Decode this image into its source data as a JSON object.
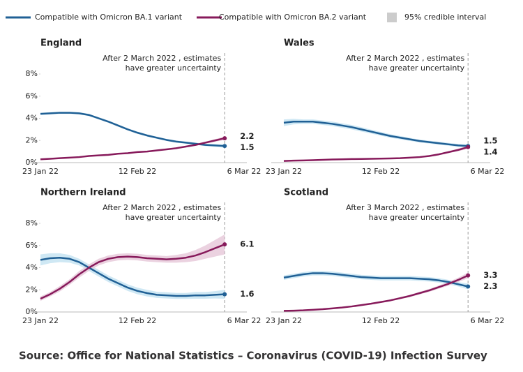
{
  "legend": [
    {
      "name": "Compatible with Omicron BA.1 variant",
      "color": "#206095"
    },
    {
      "name": "Compatible with Omicron BA.2 variant",
      "color": "#871a5b"
    },
    {
      "name": "95% credible interval",
      "color": "#cccccc"
    }
  ],
  "source": "Source: Office for National Statistics – Coronavirus (COVID-19) Infection Survey",
  "chart_data": [
    {
      "type": "line",
      "title": "England",
      "annotation": [
        "After 2 March 2022 , estimates",
        "have greater uncertainty"
      ],
      "categories": [
        "23 Jan 22",
        null,
        null,
        null,
        null,
        null,
        null,
        null,
        null,
        null,
        "12 Feb 22",
        null,
        null,
        null,
        null,
        null,
        null,
        null,
        null,
        null,
        null,
        "6 Mar 22"
      ],
      "ylim": [
        0,
        8
      ],
      "yticks": [
        {
          "value": 0,
          "label": "0%"
        },
        {
          "value": 2,
          "label": "2%"
        },
        {
          "value": 4,
          "label": "4%"
        },
        {
          "value": 6,
          "label": "6%"
        },
        {
          "value": 8,
          "label": "8%"
        }
      ],
      "series": [
        {
          "color": "#206095",
          "band_color": "#c3e2f1",
          "values": [
            4.4,
            4.45,
            4.5,
            4.5,
            4.45,
            4.3,
            4.0,
            3.7,
            3.35,
            3.0,
            2.7,
            2.45,
            2.25,
            2.05,
            1.9,
            1.8,
            1.7,
            1.6,
            1.55,
            1.5,
            null,
            null
          ],
          "lower": [
            4.3,
            4.35,
            4.4,
            4.4,
            4.35,
            4.2,
            3.9,
            3.6,
            3.25,
            2.9,
            2.6,
            2.35,
            2.15,
            1.95,
            1.8,
            1.7,
            1.6,
            1.5,
            1.42,
            1.35,
            null,
            null
          ],
          "upper": [
            4.5,
            4.55,
            4.6,
            4.6,
            4.55,
            4.4,
            4.1,
            3.8,
            3.45,
            3.1,
            2.8,
            2.55,
            2.35,
            2.15,
            2.0,
            1.9,
            1.8,
            1.7,
            1.68,
            1.65,
            null,
            null
          ]
        },
        {
          "color": "#871a5b",
          "band_color": "#e6c7d8",
          "values": [
            0.3,
            0.35,
            0.4,
            0.45,
            0.5,
            0.6,
            0.65,
            0.7,
            0.8,
            0.85,
            0.95,
            1.0,
            1.1,
            1.2,
            1.3,
            1.45,
            1.6,
            1.8,
            2.0,
            2.2,
            null,
            null
          ],
          "lower": [
            0.25,
            0.3,
            0.35,
            0.4,
            0.45,
            0.55,
            0.6,
            0.65,
            0.75,
            0.8,
            0.9,
            0.95,
            1.05,
            1.15,
            1.25,
            1.38,
            1.52,
            1.7,
            1.88,
            2.05,
            null,
            null
          ],
          "upper": [
            0.35,
            0.4,
            0.45,
            0.5,
            0.55,
            0.65,
            0.7,
            0.75,
            0.85,
            0.9,
            1.0,
            1.05,
            1.15,
            1.25,
            1.35,
            1.52,
            1.68,
            1.9,
            2.12,
            2.35,
            null,
            null
          ]
        }
      ]
    },
    {
      "type": "line",
      "title": "Wales",
      "annotation": [
        "After 2 March 2022 , estimates",
        "have greater uncertainty"
      ],
      "categories": [
        "23 Jan 22",
        null,
        null,
        null,
        null,
        null,
        null,
        null,
        null,
        null,
        "12 Feb 22",
        null,
        null,
        null,
        null,
        null,
        null,
        null,
        null,
        null,
        null,
        "6 Mar 22"
      ],
      "ylim": [
        0,
        8
      ],
      "series": [
        {
          "color": "#206095",
          "band_color": "#c3e2f1",
          "values": [
            3.6,
            3.7,
            3.7,
            3.7,
            3.6,
            3.5,
            3.35,
            3.2,
            3.0,
            2.8,
            2.6,
            2.4,
            2.25,
            2.1,
            1.95,
            1.85,
            1.75,
            1.65,
            1.55,
            1.5,
            null,
            null
          ],
          "lower": [
            3.3,
            3.45,
            3.5,
            3.5,
            3.4,
            3.3,
            3.15,
            3.0,
            2.8,
            2.62,
            2.43,
            2.24,
            2.1,
            1.96,
            1.82,
            1.72,
            1.62,
            1.52,
            1.42,
            1.35,
            null,
            null
          ],
          "upper": [
            3.9,
            3.95,
            3.9,
            3.9,
            3.8,
            3.7,
            3.55,
            3.4,
            3.2,
            2.98,
            2.77,
            2.56,
            2.4,
            2.24,
            2.08,
            1.98,
            1.88,
            1.78,
            1.68,
            1.65,
            null,
            null
          ]
        },
        {
          "color": "#871a5b",
          "band_color": "#e6c7d8",
          "values": [
            0.15,
            0.18,
            0.2,
            0.22,
            0.25,
            0.28,
            0.3,
            0.32,
            0.33,
            0.35,
            0.36,
            0.38,
            0.4,
            0.45,
            0.5,
            0.6,
            0.75,
            0.95,
            1.15,
            1.4,
            null,
            null
          ],
          "lower": [
            0.1,
            0.13,
            0.15,
            0.17,
            0.2,
            0.23,
            0.25,
            0.27,
            0.28,
            0.3,
            0.31,
            0.33,
            0.35,
            0.4,
            0.44,
            0.53,
            0.67,
            0.85,
            1.03,
            1.25,
            null,
            null
          ],
          "upper": [
            0.2,
            0.23,
            0.25,
            0.27,
            0.3,
            0.33,
            0.35,
            0.37,
            0.38,
            0.4,
            0.41,
            0.43,
            0.45,
            0.5,
            0.56,
            0.67,
            0.83,
            1.05,
            1.27,
            1.55,
            null,
            null
          ]
        }
      ]
    },
    {
      "type": "line",
      "title": "Northern Ireland",
      "annotation": [
        "After 2 March 2022 , estimates",
        "have greater uncertainty"
      ],
      "categories": [
        "23 Jan 22",
        null,
        null,
        null,
        null,
        null,
        null,
        null,
        null,
        null,
        "12 Feb 22",
        null,
        null,
        null,
        null,
        null,
        null,
        null,
        null,
        null,
        null,
        "6 Mar 22"
      ],
      "ylim": [
        0,
        8
      ],
      "yticks": [
        {
          "value": 0,
          "label": "0%"
        },
        {
          "value": 2,
          "label": "2%"
        },
        {
          "value": 4,
          "label": "4%"
        },
        {
          "value": 6,
          "label": "6%"
        },
        {
          "value": 8,
          "label": "8%"
        }
      ],
      "series": [
        {
          "color": "#206095",
          "band_color": "#c3e2f1",
          "values": [
            4.7,
            4.85,
            4.9,
            4.8,
            4.5,
            4.0,
            3.5,
            3.0,
            2.6,
            2.2,
            1.9,
            1.7,
            1.55,
            1.5,
            1.45,
            1.45,
            1.5,
            1.5,
            1.55,
            1.6,
            null,
            null
          ],
          "lower": [
            4.2,
            4.4,
            4.5,
            4.45,
            4.2,
            3.7,
            3.2,
            2.7,
            2.3,
            1.9,
            1.6,
            1.4,
            1.27,
            1.22,
            1.18,
            1.18,
            1.2,
            1.2,
            1.22,
            1.2,
            null,
            null
          ],
          "upper": [
            5.2,
            5.3,
            5.3,
            5.15,
            4.8,
            4.3,
            3.8,
            3.3,
            2.9,
            2.5,
            2.2,
            2.0,
            1.83,
            1.78,
            1.72,
            1.72,
            1.8,
            1.8,
            1.88,
            2.0,
            null,
            null
          ]
        },
        {
          "color": "#871a5b",
          "band_color": "#e6c7d8",
          "values": [
            1.2,
            1.6,
            2.1,
            2.7,
            3.4,
            4.0,
            4.5,
            4.8,
            4.95,
            5.0,
            4.95,
            4.85,
            4.8,
            4.75,
            4.8,
            4.9,
            5.1,
            5.4,
            5.75,
            6.1,
            null,
            null
          ],
          "lower": [
            1.0,
            1.4,
            1.85,
            2.45,
            3.1,
            3.7,
            4.2,
            4.5,
            4.65,
            4.7,
            4.65,
            4.55,
            4.5,
            4.45,
            4.45,
            4.5,
            4.6,
            4.8,
            5.0,
            5.2,
            null,
            null
          ],
          "upper": [
            1.4,
            1.8,
            2.35,
            2.95,
            3.7,
            4.3,
            4.8,
            5.1,
            5.25,
            5.3,
            5.25,
            5.15,
            5.1,
            5.05,
            5.15,
            5.3,
            5.6,
            6.0,
            6.5,
            7.0,
            null,
            null
          ]
        }
      ]
    },
    {
      "type": "line",
      "title": "Scotland",
      "annotation": [
        "After 3 March 2022 , estimates",
        "have greater uncertainty"
      ],
      "categories": [
        "23 Jan 22",
        null,
        null,
        null,
        null,
        null,
        null,
        null,
        null,
        null,
        "12 Feb 22",
        null,
        null,
        null,
        null,
        null,
        null,
        null,
        null,
        null,
        null,
        "6 Mar 22"
      ],
      "ylim": [
        0,
        8
      ],
      "series": [
        {
          "color": "#206095",
          "band_color": "#c3e2f1",
          "values": [
            3.1,
            3.25,
            3.4,
            3.5,
            3.5,
            3.45,
            3.35,
            3.25,
            3.15,
            3.1,
            3.05,
            3.05,
            3.05,
            3.05,
            3.0,
            2.95,
            2.85,
            2.7,
            2.5,
            2.3,
            null,
            null
          ],
          "lower": [
            2.9,
            3.05,
            3.2,
            3.3,
            3.3,
            3.25,
            3.15,
            3.05,
            2.95,
            2.9,
            2.85,
            2.85,
            2.85,
            2.85,
            2.8,
            2.75,
            2.65,
            2.5,
            2.3,
            2.05,
            null,
            null
          ],
          "upper": [
            3.3,
            3.45,
            3.6,
            3.7,
            3.7,
            3.65,
            3.55,
            3.45,
            3.35,
            3.3,
            3.25,
            3.25,
            3.25,
            3.25,
            3.2,
            3.15,
            3.05,
            2.9,
            2.7,
            2.55,
            null,
            null
          ]
        },
        {
          "color": "#871a5b",
          "band_color": "#e6c7d8",
          "values": [
            0.1,
            0.12,
            0.15,
            0.2,
            0.25,
            0.32,
            0.4,
            0.5,
            0.62,
            0.75,
            0.9,
            1.05,
            1.25,
            1.45,
            1.7,
            1.95,
            2.25,
            2.55,
            2.9,
            3.3,
            null,
            null
          ],
          "lower": [
            0.07,
            0.09,
            0.12,
            0.17,
            0.22,
            0.28,
            0.36,
            0.45,
            0.57,
            0.69,
            0.83,
            0.97,
            1.16,
            1.35,
            1.58,
            1.82,
            2.1,
            2.38,
            2.7,
            3.05,
            null,
            null
          ],
          "upper": [
            0.13,
            0.15,
            0.18,
            0.23,
            0.28,
            0.36,
            0.44,
            0.55,
            0.67,
            0.81,
            0.97,
            1.13,
            1.34,
            1.55,
            1.82,
            2.08,
            2.4,
            2.72,
            3.1,
            3.55,
            null,
            null
          ]
        }
      ]
    }
  ]
}
